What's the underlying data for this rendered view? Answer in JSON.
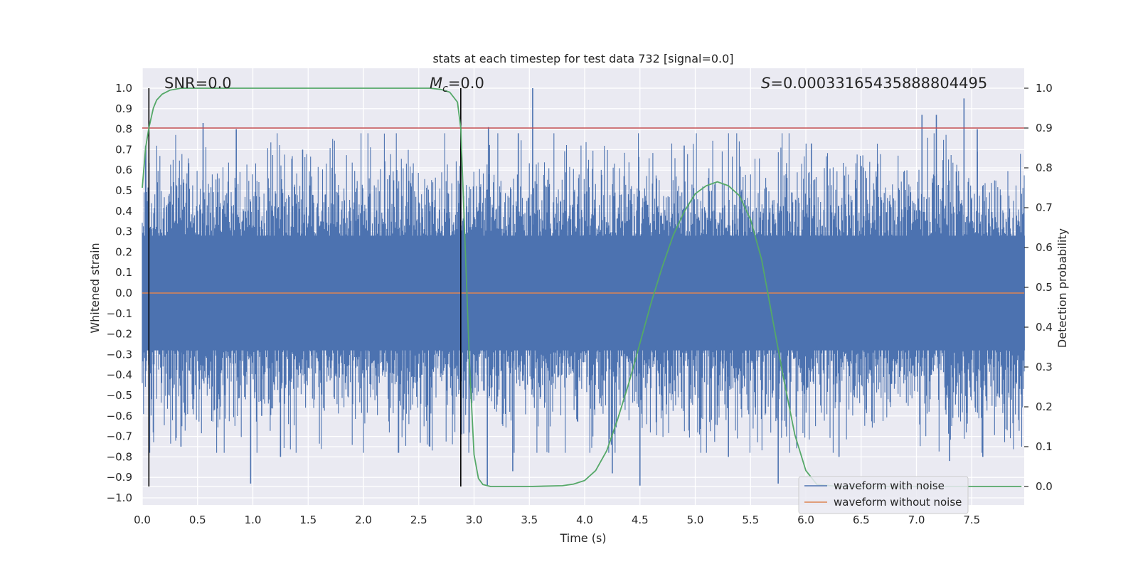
{
  "chart_data": {
    "type": "line",
    "title": "stats at each timestep for test data 732 [signal=0.0]",
    "xlabel": "Time (s)",
    "ylabel": "Whitened strain",
    "y2label": "Detection probability",
    "xlim": [
      0.0,
      8.0
    ],
    "ylim": [
      -1.05,
      1.05
    ],
    "y2lim": [
      -0.045,
      1.045
    ],
    "x_ticks": [
      "0.0",
      "0.5",
      "1.0",
      "1.5",
      "2.0",
      "2.5",
      "3.0",
      "3.5",
      "4.0",
      "4.5",
      "5.0",
      "5.5",
      "6.0",
      "6.5",
      "7.0",
      "7.5"
    ],
    "y_ticks": [
      "1.0",
      "0.9",
      "0.8",
      "0.7",
      "0.6",
      "0.5",
      "0.4",
      "0.3",
      "0.2",
      "0.1",
      "0.0",
      "−0.1",
      "−0.2",
      "−0.3",
      "−0.4",
      "−0.5",
      "−0.6",
      "−0.7",
      "−0.8",
      "−0.9",
      "−1.0"
    ],
    "y2_ticks": [
      "1.0",
      "0.9",
      "0.8",
      "0.7",
      "0.6",
      "0.5",
      "0.4",
      "0.3",
      "0.2",
      "0.1",
      "0.0"
    ],
    "annotations": {
      "snr": "SNR=0.0",
      "mc_symbol": "M",
      "mc_sub": "c",
      "mc_rest": "=0.0",
      "s_symbol": "S",
      "s_rest": "=0.00033165435888804495"
    },
    "vertical_lines_x": [
      0.06,
      2.88
    ],
    "threshold_y2": 0.9,
    "legend": {
      "placement": "lower-right",
      "entries": [
        "waveform with noise",
        "waveform without noise"
      ]
    },
    "series": [
      {
        "name": "waveform with noise",
        "color": "#4c72b0",
        "spikes": [
          {
            "x": 0.55,
            "y": 0.83
          },
          {
            "x": 0.85,
            "y": 0.8
          },
          {
            "x": 2.88,
            "y": 0.81
          },
          {
            "x": 3.13,
            "y": 0.81
          },
          {
            "x": 3.53,
            "y": 1.0
          },
          {
            "x": 3.12,
            "y": -0.94
          },
          {
            "x": 4.5,
            "y": -0.94
          },
          {
            "x": 5.75,
            "y": -0.93
          },
          {
            "x": 0.98,
            "y": -0.93
          },
          {
            "x": 1.25,
            "y": -0.8
          },
          {
            "x": 0.1,
            "y": -0.68
          },
          {
            "x": 3.35,
            "y": -0.87
          },
          {
            "x": 4.25,
            "y": -0.88
          },
          {
            "x": 7.05,
            "y": 0.87
          },
          {
            "x": 7.18,
            "y": 0.87
          },
          {
            "x": 7.43,
            "y": 0.95
          },
          {
            "x": 7.55,
            "y": 0.8
          },
          {
            "x": 7.6,
            "y": -0.8
          },
          {
            "x": 7.3,
            "y": -0.82
          },
          {
            "x": 1.08,
            "y": -0.6
          },
          {
            "x": 6.3,
            "y": -0.8
          },
          {
            "x": 5.3,
            "y": -0.8
          },
          {
            "x": 2.6,
            "y": -0.75
          },
          {
            "x": 0.35,
            "y": -0.75
          },
          {
            "x": 4.9,
            "y": 0.72
          },
          {
            "x": 6.05,
            "y": 0.73
          },
          {
            "x": 3.4,
            "y": 0.78
          },
          {
            "x": 1.45,
            "y": 0.7
          }
        ]
      },
      {
        "name": "waveform without noise",
        "color": "#dd8452",
        "values_y": 0.0
      },
      {
        "name": "",
        "axis": "right",
        "color": "#55a868",
        "x": [
          0.0,
          0.03,
          0.06,
          0.1,
          0.13,
          0.18,
          0.25,
          0.35,
          0.5,
          1.0,
          2.0,
          2.6,
          2.7,
          2.78,
          2.85,
          2.88,
          2.92,
          2.96,
          3.0,
          3.04,
          3.08,
          3.15,
          3.2,
          3.5,
          3.8,
          3.9,
          4.0,
          4.1,
          4.2,
          4.3,
          4.4,
          4.5,
          4.6,
          4.7,
          4.8,
          4.9,
          5.0,
          5.1,
          5.2,
          5.3,
          5.4,
          5.5,
          5.6,
          5.7,
          5.8,
          5.9,
          6.0,
          6.1,
          6.3,
          7.0,
          7.95
        ],
        "values": [
          0.75,
          0.85,
          0.9,
          0.95,
          0.97,
          0.985,
          0.995,
          1.0,
          1.0,
          1.0,
          1.0,
          1.0,
          0.997,
          0.99,
          0.965,
          0.9,
          0.6,
          0.3,
          0.08,
          0.02,
          0.005,
          0.0,
          0.0,
          0.0,
          0.002,
          0.006,
          0.015,
          0.04,
          0.09,
          0.17,
          0.26,
          0.36,
          0.46,
          0.55,
          0.63,
          0.69,
          0.735,
          0.755,
          0.765,
          0.755,
          0.73,
          0.67,
          0.57,
          0.42,
          0.27,
          0.13,
          0.04,
          0.005,
          0.0,
          0.0,
          0.0
        ]
      },
      {
        "name": "",
        "axis": "right",
        "color": "#c44e52",
        "values_y2": 0.9
      }
    ]
  }
}
